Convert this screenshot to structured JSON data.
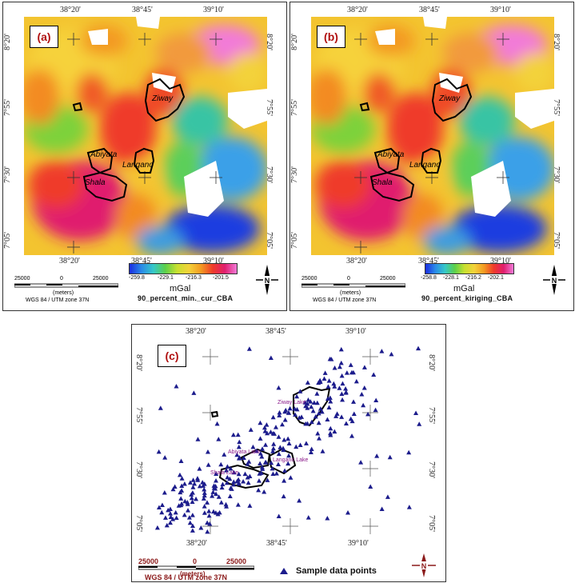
{
  "panel_a": {
    "label": "(a)",
    "top_ticks": [
      "38°20'",
      "38°45'",
      "39°10'"
    ],
    "bottom_ticks": [
      "38°20'",
      "38°45'",
      "39°10'"
    ],
    "left_ticks": [
      "8°20'",
      "7°55'",
      "7°30'",
      "7°05'"
    ],
    "right_ticks": [
      "8°20'",
      "7°55'",
      "7°30'",
      "7°05'"
    ],
    "lakes": [
      "Ziway",
      "Abiyata",
      "Langano",
      "Shala"
    ],
    "colorbar_ticks": [
      "-259.8",
      "-229.1",
      "-216.3",
      "-201.5"
    ],
    "unit": "mGal",
    "caption": "90_percent_min._cur_CBA",
    "scale": {
      "left": "25000",
      "mid": "0",
      "right": "25000",
      "unit": "(meters)",
      "crs": "WGS 84 / UTM zone 37N"
    }
  },
  "panel_b": {
    "label": "(b)",
    "top_ticks": [
      "38°20'",
      "38°45'",
      "39°10'"
    ],
    "bottom_ticks": [
      "38°20'",
      "38°45'",
      "39°10'"
    ],
    "left_ticks": [
      "8°20'",
      "7°55'",
      "7°30'",
      "7°05'"
    ],
    "right_ticks": [
      "8°20'",
      "7°55'",
      "7°30'",
      "7°05'"
    ],
    "lakes": [
      "Ziway",
      "Abiyata",
      "Langano",
      "Shala"
    ],
    "colorbar_ticks": [
      "-258.8",
      "-228.1",
      "-216.2",
      "-202.1"
    ],
    "unit": "mGal",
    "caption": "90_percent_kiriging_CBA",
    "scale": {
      "left": "25000",
      "mid": "0",
      "right": "25000",
      "unit": "(meters)",
      "crs": "WGS 84 / UTM zone 37N"
    }
  },
  "panel_c": {
    "label": "(c)",
    "top_ticks": [
      "38°20'",
      "38°45'",
      "39°10'"
    ],
    "bottom_ticks": [
      "38°20'",
      "38°45'",
      "39°10'"
    ],
    "left_ticks": [
      "8°20'",
      "7°55'",
      "7°30'",
      "7°05'"
    ],
    "right_ticks": [
      "8°20'",
      "7°55'",
      "7°30'",
      "7°05'"
    ],
    "lakes": [
      "Ziway Lake",
      "Abiyata Lake",
      "Langano Lake",
      "Shala Lake"
    ],
    "legend": "Sample data points",
    "scale": {
      "left": "25000",
      "mid": "0",
      "right": "25000",
      "unit": "(meters)",
      "crs": "WGS 84 / UTM zone 37N"
    }
  },
  "north_label": "N",
  "colors": {
    "marker": "#1c1c8c",
    "frame_red": "#8b1a1a",
    "lake_text": "#8a1a8a"
  }
}
